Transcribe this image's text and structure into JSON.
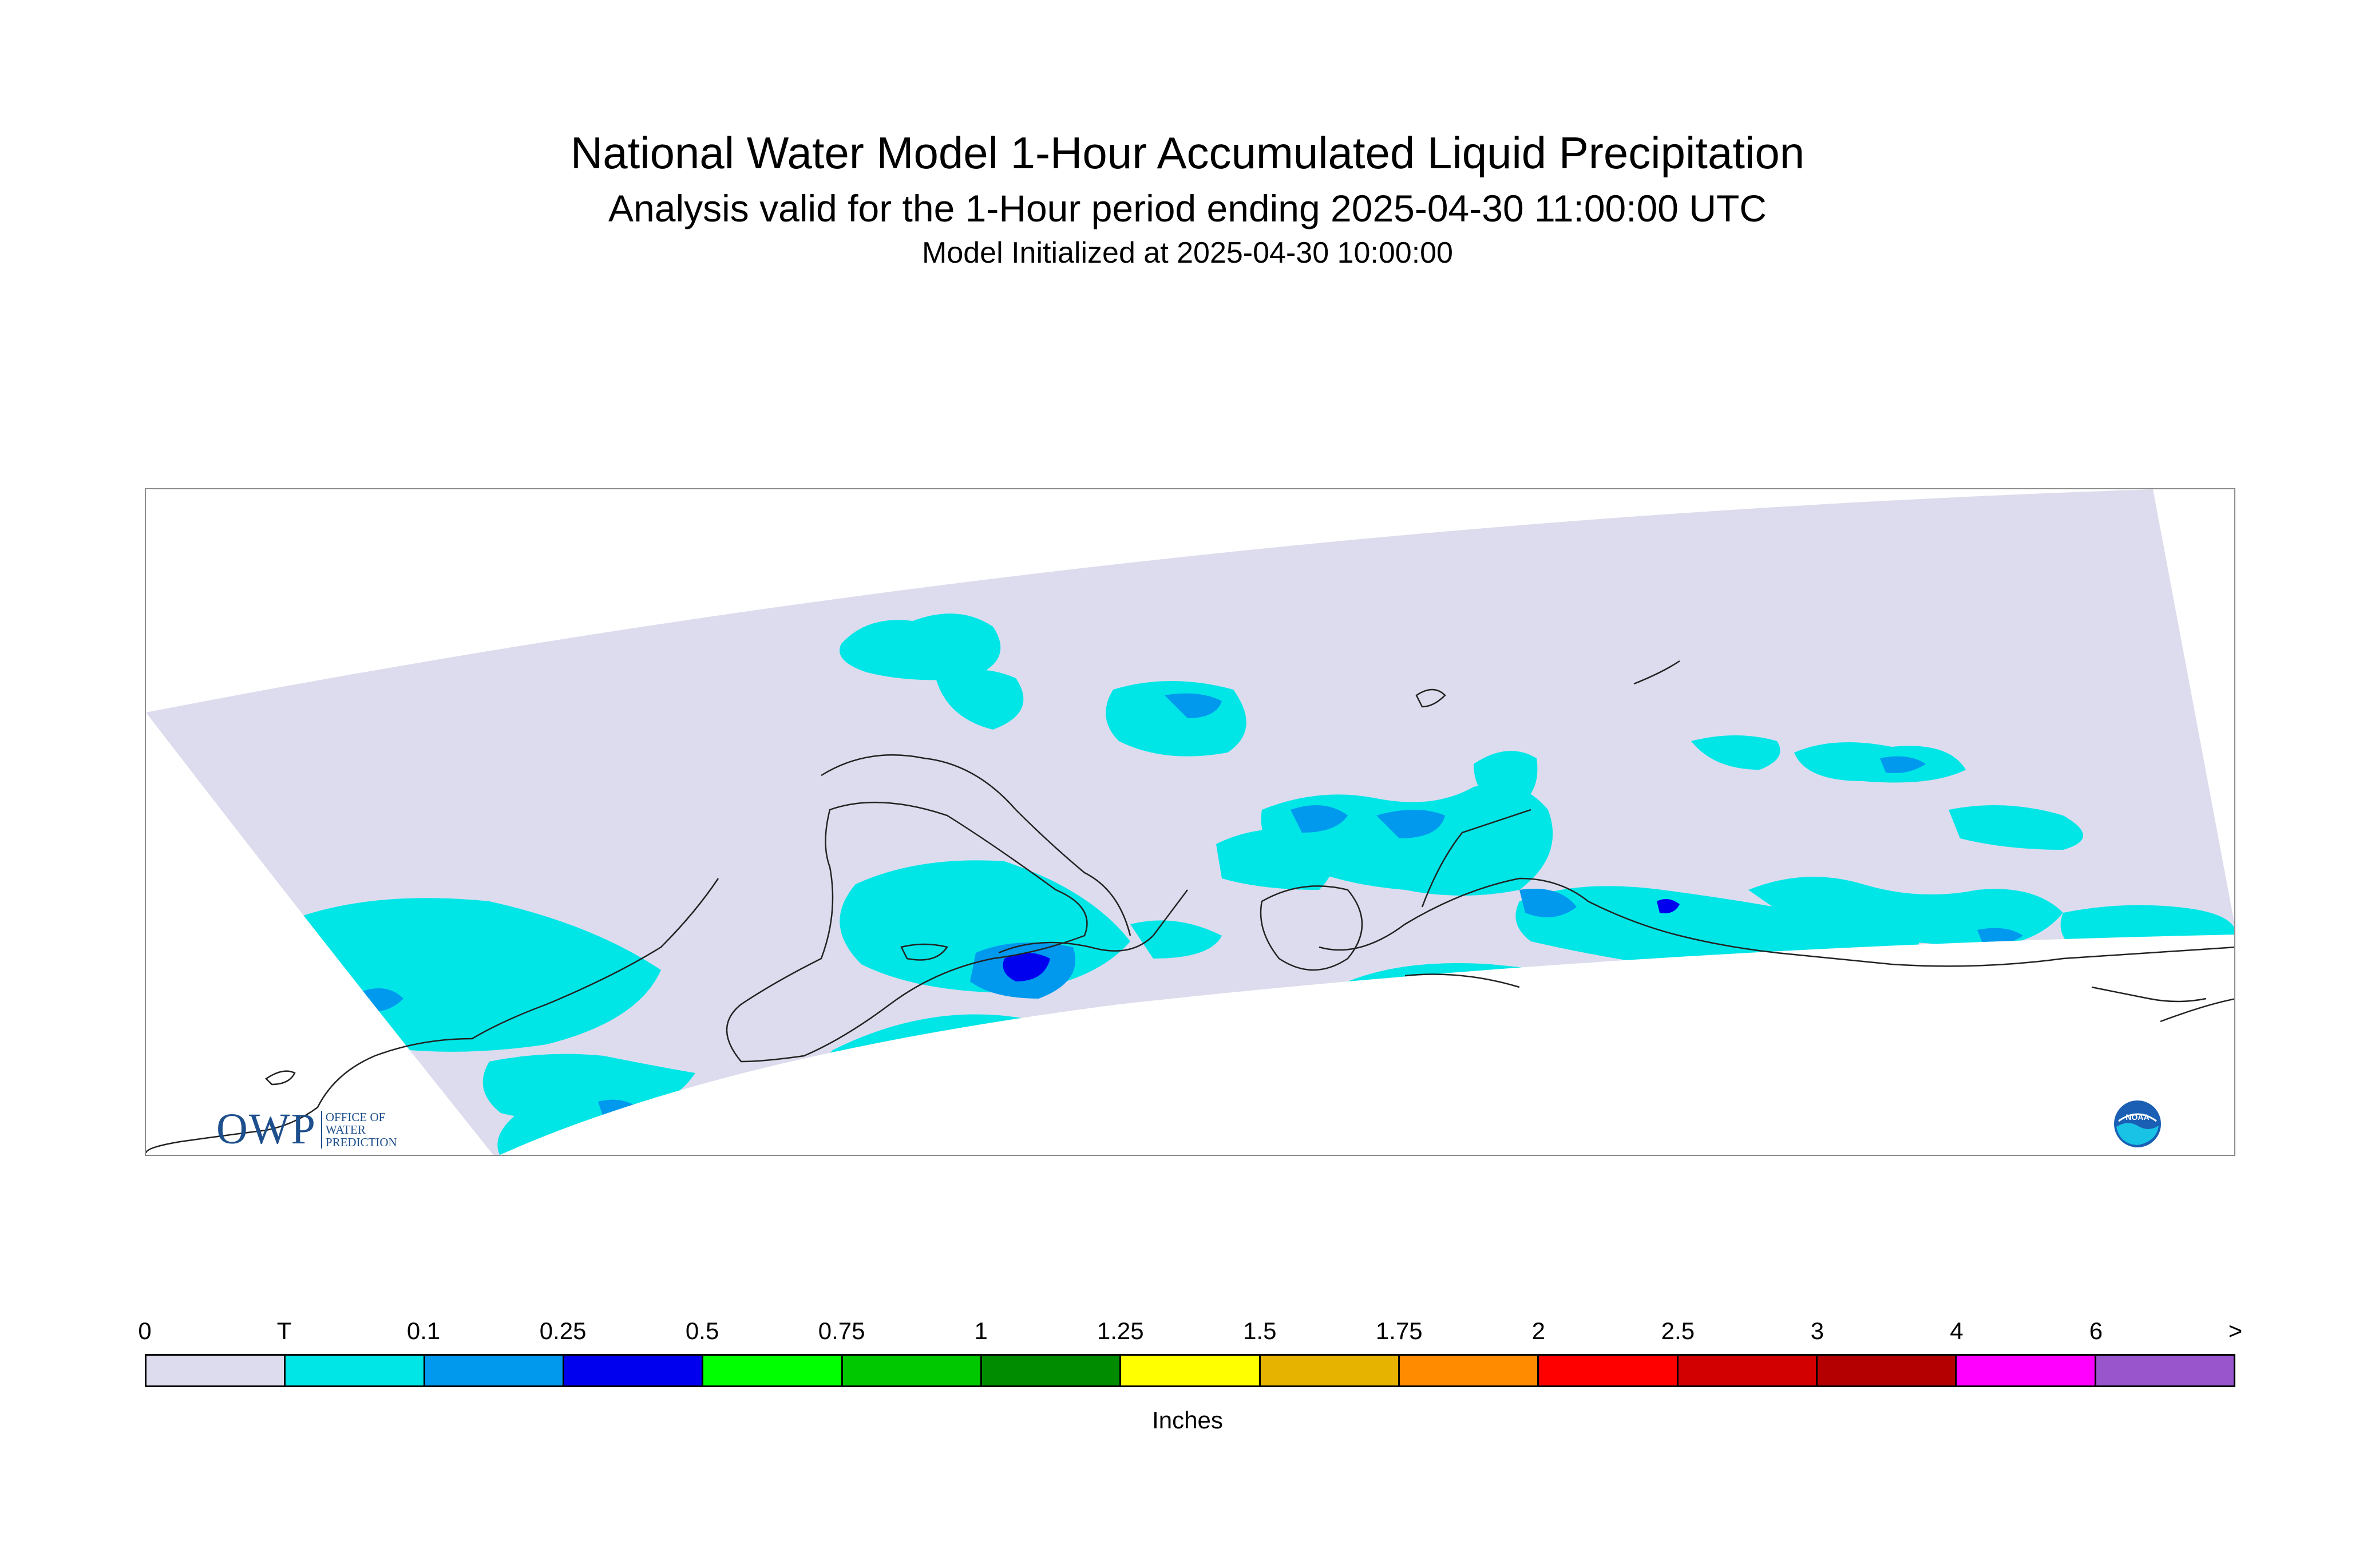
{
  "title": "National Water Model 1-Hour Accumulated Liquid Precipitation",
  "subtitle": "Analysis valid for the 1-Hour period ending 2025-04-30 11:00:00 UTC",
  "init_line": "Model Initialized at 2025-04-30 10:00:00",
  "colors": {
    "domain_fill": "#dcdcee",
    "coastline": "#222222",
    "precip_trace": "#00e6e6",
    "precip_01": "#0099ee",
    "precip_025": "#0000ee"
  },
  "legend": {
    "tick_labels": [
      "0",
      "T",
      "0.1",
      "0.25",
      "0.5",
      "0.75",
      "1",
      "1.25",
      "1.5",
      "1.75",
      "2",
      "2.5",
      "3",
      "4",
      "6",
      ">"
    ],
    "colors": [
      "#dcdcee",
      "#00e6e6",
      "#0099ee",
      "#0000ee",
      "#00ff00",
      "#00c800",
      "#008c00",
      "#ffff00",
      "#e6b400",
      "#ff8c00",
      "#ff0000",
      "#d20000",
      "#b40000",
      "#ff00ff",
      "#9955cc"
    ],
    "units": "Inches"
  },
  "logos": {
    "owp_mark": "OWP",
    "owp_text": [
      "OFFICE OF",
      "WATER",
      "PREDICTION"
    ],
    "noaa_text": "NOAA"
  }
}
